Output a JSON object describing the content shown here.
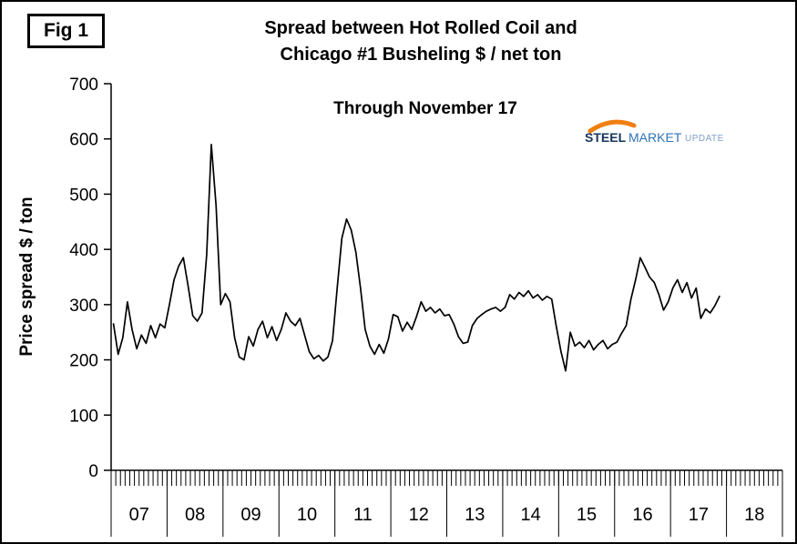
{
  "figure": {
    "label": "Fig 1"
  },
  "title": {
    "line1": "Spread between Hot Rolled Coil and",
    "line2": "Chicago #1 Busheling  $ / net ton"
  },
  "annotation": {
    "through": "Through November 17"
  },
  "logo": {
    "steel": "STEEL",
    "market": "MARKET",
    "update": "UPDATE",
    "swoosh_color": "#F07F13",
    "steel_color": "#16355C",
    "market_color": "#2E74B5",
    "update_color": "#7F9FC6"
  },
  "y_axis": {
    "label": "Price spread $ / ton",
    "ticks": [
      0,
      100,
      200,
      300,
      400,
      500,
      600,
      700
    ],
    "min": 0,
    "max": 700
  },
  "x_axis": {
    "year_labels": [
      "07",
      "08",
      "09",
      "10",
      "11",
      "12",
      "13",
      "14",
      "15",
      "16",
      "17",
      "18"
    ],
    "months_per_year": 12
  },
  "chart_data": {
    "type": "line",
    "title": "Spread between Hot Rolled Coil and Chicago #1 Busheling $ / net ton",
    "subtitle": "Through November 17",
    "ylabel": "Price spread $ / ton",
    "ylim": [
      0,
      700
    ],
    "grid": false,
    "legend": false,
    "line_color": "#000000",
    "frequency": "monthly",
    "start": "2007-01",
    "end": "2017-11",
    "values": [
      265,
      210,
      240,
      305,
      255,
      220,
      245,
      230,
      262,
      240,
      265,
      258,
      300,
      345,
      370,
      385,
      335,
      280,
      270,
      285,
      390,
      590,
      480,
      300,
      320,
      305,
      240,
      205,
      200,
      242,
      225,
      255,
      270,
      240,
      260,
      235,
      255,
      285,
      270,
      262,
      275,
      245,
      215,
      202,
      208,
      198,
      205,
      235,
      330,
      420,
      455,
      435,
      395,
      330,
      255,
      225,
      210,
      228,
      212,
      238,
      282,
      278,
      252,
      268,
      255,
      278,
      305,
      288,
      295,
      285,
      292,
      280,
      282,
      265,
      242,
      230,
      232,
      262,
      275,
      282,
      288,
      292,
      295,
      288,
      295,
      318,
      310,
      322,
      315,
      325,
      312,
      318,
      308,
      315,
      310,
      260,
      215,
      180,
      250,
      225,
      232,
      222,
      235,
      218,
      228,
      235,
      220,
      228,
      232,
      248,
      262,
      310,
      345,
      385,
      368,
      350,
      340,
      318,
      290,
      305,
      330,
      345,
      322,
      340,
      312,
      330,
      275,
      292,
      285,
      298,
      315
    ]
  }
}
